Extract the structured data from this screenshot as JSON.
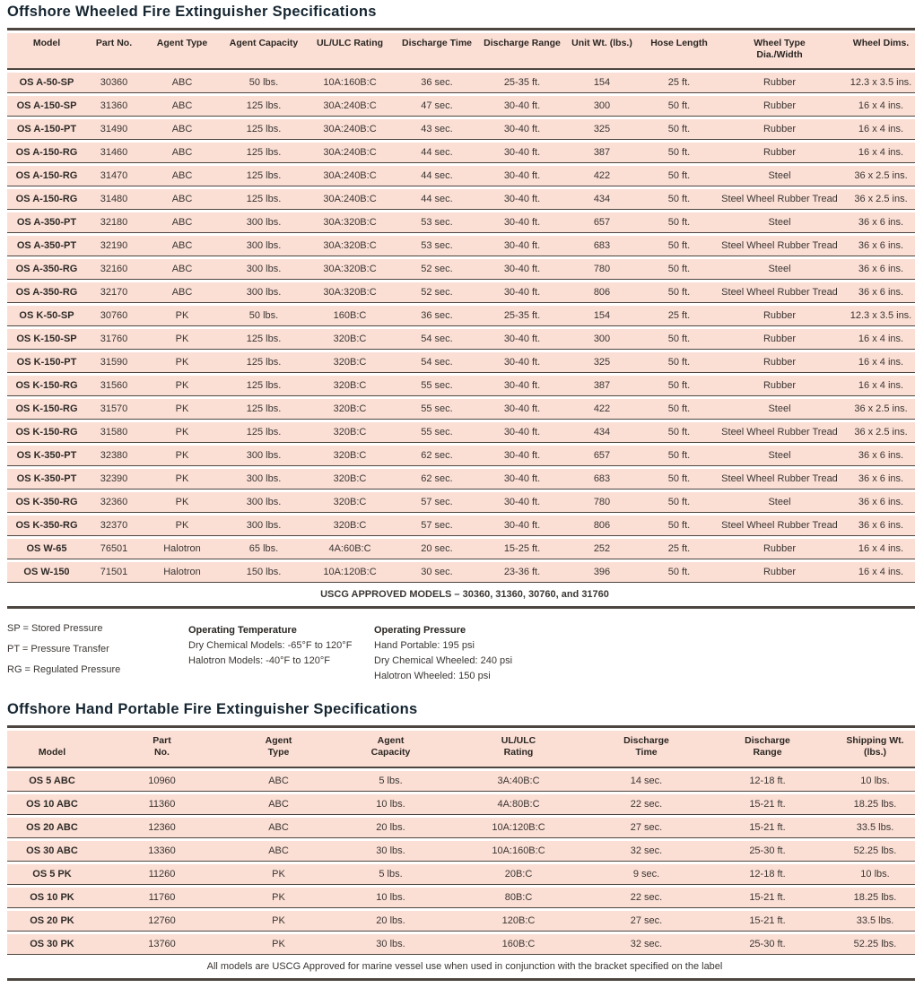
{
  "colors": {
    "row_bg": "#fbdfd5",
    "rule_line": "#4d4640",
    "title_text": "#152530",
    "body_text": "#3a3532"
  },
  "wheeled": {
    "title": "Offshore Wheeled Fire Extinguisher Specifications",
    "columns": [
      "Model",
      "Part No.",
      "Agent Type",
      "Agent Capacity",
      "UL/ULC Rating",
      "Discharge Time",
      "Discharge Range",
      "Unit Wt. (lbs.)",
      "Hose Length",
      "Wheel Type\nDia./Width",
      "Wheel Dims."
    ],
    "rows": [
      [
        "OS A-50-SP",
        "30360",
        "ABC",
        "50 lbs.",
        "10A:160B:C",
        "36 sec.",
        "25-35 ft.",
        "154",
        "25 ft.",
        "Rubber",
        "12.3 x 3.5 ins."
      ],
      [
        "OS A-150-SP",
        "31360",
        "ABC",
        "125 lbs.",
        "30A:240B:C",
        "47 sec.",
        "30-40 ft.",
        "300",
        "50 ft.",
        "Rubber",
        "16 x 4 ins."
      ],
      [
        "OS A-150-PT",
        "31490",
        "ABC",
        "125 lbs.",
        "30A:240B:C",
        "43 sec.",
        "30-40 ft.",
        "325",
        "50 ft.",
        "Rubber",
        "16 x 4 ins."
      ],
      [
        "OS A-150-RG",
        "31460",
        "ABC",
        "125 lbs.",
        "30A:240B:C",
        "44 sec.",
        "30-40 ft.",
        "387",
        "50 ft.",
        "Rubber",
        "16 x 4 ins."
      ],
      [
        "OS A-150-RG",
        "31470",
        "ABC",
        "125 lbs.",
        "30A:240B:C",
        "44 sec.",
        "30-40 ft.",
        "422",
        "50 ft.",
        "Steel",
        "36 x 2.5 ins."
      ],
      [
        "OS A-150-RG",
        "31480",
        "ABC",
        "125 lbs.",
        "30A:240B:C",
        "44 sec.",
        "30-40 ft.",
        "434",
        "50 ft.",
        "Steel Wheel Rubber Tread",
        "36 x 2.5 ins."
      ],
      [
        "OS A-350-PT",
        "32180",
        "ABC",
        "300 lbs.",
        "30A:320B:C",
        "53 sec.",
        "30-40 ft.",
        "657",
        "50 ft.",
        "Steel",
        "36 x 6 ins."
      ],
      [
        "OS A-350-PT",
        "32190",
        "ABC",
        "300 lbs.",
        "30A:320B:C",
        "53 sec.",
        "30-40 ft.",
        "683",
        "50 ft.",
        "Steel Wheel Rubber Tread",
        "36 x 6 ins."
      ],
      [
        "OS A-350-RG",
        "32160",
        "ABC",
        "300 lbs.",
        "30A:320B:C",
        "52 sec.",
        "30-40 ft.",
        "780",
        "50 ft.",
        "Steel",
        "36 x 6 ins."
      ],
      [
        "OS A-350-RG",
        "32170",
        "ABC",
        "300 lbs.",
        "30A:320B:C",
        "52 sec.",
        "30-40 ft.",
        "806",
        "50 ft.",
        "Steel Wheel Rubber Tread",
        "36 x 6 ins."
      ],
      [
        "OS K-50-SP",
        "30760",
        "PK",
        "50 lbs.",
        "160B:C",
        "36 sec.",
        "25-35 ft.",
        "154",
        "25 ft.",
        "Rubber",
        "12.3 x 3.5 ins."
      ],
      [
        "OS K-150-SP",
        "31760",
        "PK",
        "125 lbs.",
        "320B:C",
        "54 sec.",
        "30-40 ft.",
        "300",
        "50 ft.",
        "Rubber",
        "16 x 4 ins."
      ],
      [
        "OS K-150-PT",
        "31590",
        "PK",
        "125 lbs.",
        "320B:C",
        "54 sec.",
        "30-40 ft.",
        "325",
        "50 ft.",
        "Rubber",
        "16 x 4 ins."
      ],
      [
        "OS K-150-RG",
        "31560",
        "PK",
        "125 lbs.",
        "320B:C",
        "55 sec.",
        "30-40 ft.",
        "387",
        "50 ft.",
        "Rubber",
        "16 x 4 ins."
      ],
      [
        "OS K-150-RG",
        "31570",
        "PK",
        "125 lbs.",
        "320B:C",
        "55 sec.",
        "30-40 ft.",
        "422",
        "50 ft.",
        "Steel",
        "36 x 2.5 ins."
      ],
      [
        "OS K-150-RG",
        "31580",
        "PK",
        "125 lbs.",
        "320B:C",
        "55 sec.",
        "30-40 ft.",
        "434",
        "50 ft.",
        "Steel Wheel Rubber Tread",
        "36 x 2.5 ins."
      ],
      [
        "OS K-350-PT",
        "32380",
        "PK",
        "300 lbs.",
        "320B:C",
        "62 sec.",
        "30-40 ft.",
        "657",
        "50 ft.",
        "Steel",
        "36 x 6 ins."
      ],
      [
        "OS K-350-PT",
        "32390",
        "PK",
        "300 lbs.",
        "320B:C",
        "62 sec.",
        "30-40 ft.",
        "683",
        "50 ft.",
        "Steel Wheel Rubber Tread",
        "36 x 6 ins."
      ],
      [
        "OS K-350-RG",
        "32360",
        "PK",
        "300 lbs.",
        "320B:C",
        "57 sec.",
        "30-40 ft.",
        "780",
        "50 ft.",
        "Steel",
        "36 x 6 ins."
      ],
      [
        "OS K-350-RG",
        "32370",
        "PK",
        "300 lbs.",
        "320B:C",
        "57 sec.",
        "30-40 ft.",
        "806",
        "50 ft.",
        "Steel Wheel Rubber Tread",
        "36 x 6 ins."
      ],
      [
        "OS W-65",
        "76501",
        "Halotron",
        "65 lbs.",
        "4A:60B:C",
        "20 sec.",
        "15-25 ft.",
        "252",
        "25 ft.",
        "Rubber",
        "16 x 4 ins."
      ],
      [
        "OS W-150",
        "71501",
        "Halotron",
        "150 lbs.",
        "10A:120B:C",
        "30 sec.",
        "23-36 ft.",
        "396",
        "50 ft.",
        "Rubber",
        "16 x 4 ins."
      ]
    ],
    "footer": "USCG APPROVED MODELS – 30360, 31360, 30760, and 31760"
  },
  "notes": {
    "abbreviations": [
      "SP = Stored Pressure",
      "PT = Pressure Transfer",
      "RG = Regulated Pressure"
    ],
    "operating_temperature": {
      "title": "Operating Temperature",
      "lines": [
        "Dry Chemical Models: -65°F to 120°F",
        "Halotron Models: -40°F to 120°F"
      ]
    },
    "operating_pressure": {
      "title": "Operating Pressure",
      "lines": [
        "Hand Portable: 195 psi",
        "Dry Chemical Wheeled: 240 psi",
        "Halotron Wheeled: 150 psi"
      ]
    }
  },
  "hand_portable": {
    "title": "Offshore Hand Portable Fire Extinguisher Specifications",
    "columns": [
      "Model",
      "Part\nNo.",
      "Agent\nType",
      "Agent\nCapacity",
      "UL/ULC\nRating",
      "Discharge\nTime",
      "Discharge\nRange",
      "Shipping Wt.\n(lbs.)"
    ],
    "rows": [
      [
        "OS 5 ABC",
        "10960",
        "ABC",
        "5 lbs.",
        "3A:40B:C",
        "14 sec.",
        "12-18 ft.",
        "10 lbs."
      ],
      [
        "OS 10 ABC",
        "11360",
        "ABC",
        "10 lbs.",
        "4A:80B:C",
        "22 sec.",
        "15-21 ft.",
        "18.25 lbs."
      ],
      [
        "OS 20 ABC",
        "12360",
        "ABC",
        "20 lbs.",
        "10A:120B:C",
        "27 sec.",
        "15-21 ft.",
        "33.5 lbs."
      ],
      [
        "OS 30 ABC",
        "13360",
        "ABC",
        "30 lbs.",
        "10A:160B:C",
        "32 sec.",
        "25-30 ft.",
        "52.25 lbs."
      ],
      [
        "OS 5 PK",
        "11260",
        "PK",
        "5 lbs.",
        "20B:C",
        "9 sec.",
        "12-18 ft.",
        "10 lbs."
      ],
      [
        "OS 10 PK",
        "11760",
        "PK",
        "10 lbs.",
        "80B:C",
        "22 sec.",
        "15-21 ft.",
        "18.25 lbs."
      ],
      [
        "OS 20 PK",
        "12760",
        "PK",
        "20 lbs.",
        "120B:C",
        "27 sec.",
        "15-21 ft.",
        "33.5 lbs."
      ],
      [
        "OS 30 PK",
        "13760",
        "PK",
        "30 lbs.",
        "160B:C",
        "32 sec.",
        "25-30 ft.",
        "52.25 lbs."
      ]
    ],
    "footer": "All models are USCG Approved for marine vessel use when used in conjunction with the bracket specified on the label"
  }
}
